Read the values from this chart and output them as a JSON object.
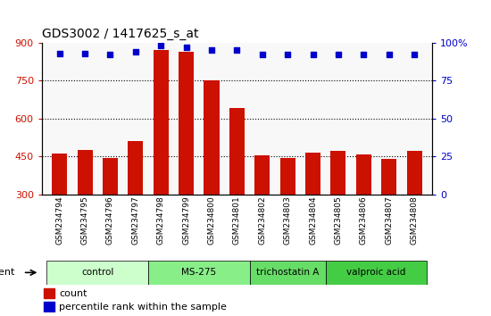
{
  "title": "GDS3002 / 1417625_s_at",
  "samples": [
    "GSM234794",
    "GSM234795",
    "GSM234796",
    "GSM234797",
    "GSM234798",
    "GSM234799",
    "GSM234800",
    "GSM234801",
    "GSM234802",
    "GSM234803",
    "GSM234804",
    "GSM234805",
    "GSM234806",
    "GSM234807",
    "GSM234808"
  ],
  "counts": [
    460,
    475,
    443,
    510,
    870,
    865,
    750,
    640,
    455,
    443,
    465,
    472,
    458,
    440,
    472
  ],
  "percentile_ranks": [
    93,
    93,
    92,
    94,
    98,
    97,
    95,
    95,
    92,
    92,
    92,
    92,
    92,
    92,
    92
  ],
  "bar_color": "#cc1100",
  "dot_color": "#0000cc",
  "ylim_left": [
    300,
    900
  ],
  "ylim_right": [
    0,
    100
  ],
  "yticks_left": [
    300,
    450,
    600,
    750,
    900
  ],
  "yticks_right": [
    0,
    25,
    50,
    75,
    100
  ],
  "grid_values": [
    450,
    600,
    750
  ],
  "groups": [
    {
      "label": "control",
      "start": 0,
      "end": 3
    },
    {
      "label": "MS-275",
      "start": 4,
      "end": 7
    },
    {
      "label": "trichostatin A",
      "start": 8,
      "end": 10
    },
    {
      "label": "valproic acid",
      "start": 11,
      "end": 14
    }
  ],
  "group_colors": [
    "#ccffcc",
    "#88ee88",
    "#66dd66",
    "#44cc44"
  ],
  "agent_label": "agent",
  "legend_count_label": "count",
  "legend_pct_label": "percentile rank within the sample",
  "xtick_bg_color": "#cccccc",
  "plot_bg_color": "#f8f8f8"
}
